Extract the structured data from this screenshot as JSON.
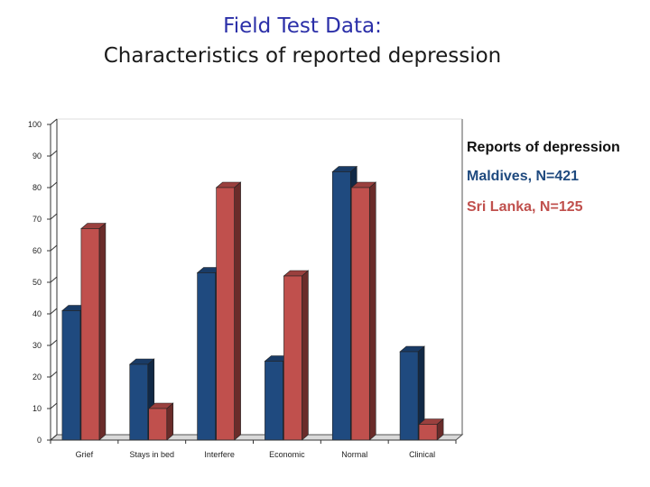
{
  "title_lines": [
    "Field Test Data:",
    "Characteristics of reported depression"
  ],
  "colors": {
    "title_line1": "#2b2fa8",
    "maldives": "#1f4a7f",
    "sri_lanka": "#c0504d"
  },
  "chart_data": {
    "type": "bar",
    "title": "Field Test Data: Characteristics of reported depression",
    "categories": [
      "Grief",
      "Stays in bed",
      "Interfere",
      "Economic",
      "Normal",
      "Clinical"
    ],
    "series": [
      {
        "name": "Maldives, N=421",
        "values": [
          41,
          24,
          53,
          25,
          85,
          28
        ],
        "color": "#1f4a7f"
      },
      {
        "name": "Sri Lanka, N=125",
        "values": [
          67,
          10,
          80,
          52,
          80,
          5
        ],
        "color": "#c0504d"
      }
    ],
    "legend_title": "Reports of depression",
    "ylim": [
      0,
      100
    ],
    "yticks": [
      "0",
      "10",
      "20",
      "30",
      "40",
      "50",
      "60",
      "70",
      "80",
      "90",
      "100"
    ],
    "xlabel": "",
    "ylabel": "",
    "grid": false,
    "legend_position": "right",
    "style": "3d-column"
  }
}
